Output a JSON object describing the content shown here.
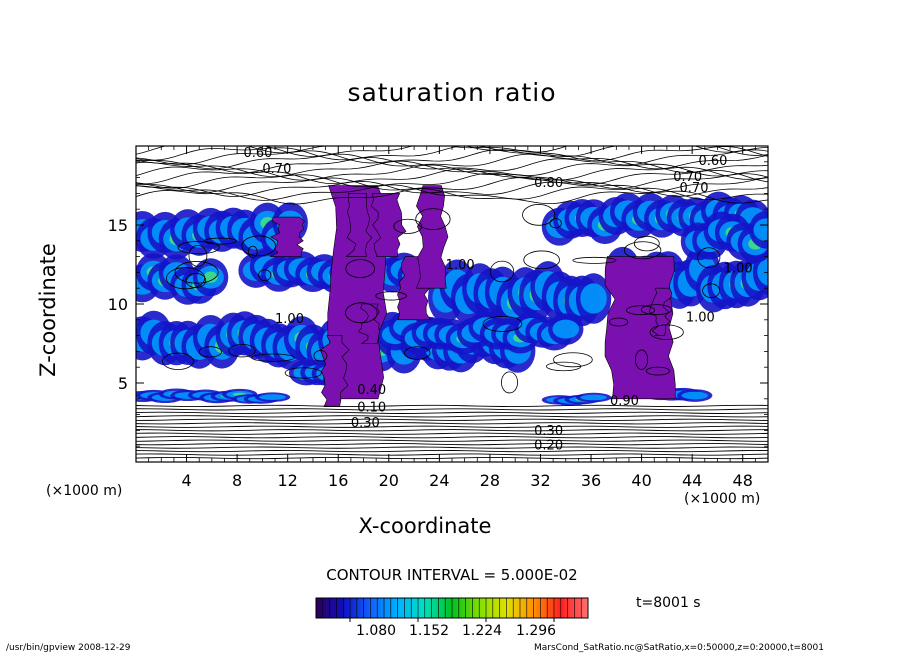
{
  "chart_data": {
    "type": "heatmap",
    "title": "saturation ratio",
    "xlabel": "X-coordinate",
    "ylabel": "Z-coordinate",
    "x_unit_left": "(×1000 m)",
    "x_unit_right": "(×1000 m)",
    "xlim": [
      0,
      50
    ],
    "ylim": [
      0,
      20
    ],
    "x_ticks": [
      4,
      8,
      12,
      16,
      20,
      24,
      28,
      32,
      36,
      40,
      44,
      48
    ],
    "y_ticks": [
      5,
      10,
      15
    ],
    "contour_interval_text": "CONTOUR INTERVAL = 5.000E-02",
    "colorbar": {
      "labels": [
        "1.080",
        "1.152",
        "1.224",
        "1.296"
      ],
      "range": [
        1.044,
        1.332
      ]
    },
    "contour_labels": [
      "0.60",
      "0.70",
      "0.80",
      "0.70",
      "0.60",
      "0.70",
      "1.00",
      "1.00",
      "1.00",
      "1.00",
      "0.90",
      "0.30",
      "0.20",
      "0.30",
      "0.10",
      "0.40"
    ],
    "time_label": "t=8001 s"
  },
  "footer": {
    "left": "/usr/bin/gpview   2008-12-29",
    "right": "MarsCond_SatRatio.nc@SatRatio,x=0:50000,z=0:20000,t=8001"
  },
  "colors": {
    "supersat_low": "#1414c8",
    "supersat_mid": "#00a0ff",
    "supersat_high": "#40e080",
    "purple_fill": "#7a10b0"
  }
}
